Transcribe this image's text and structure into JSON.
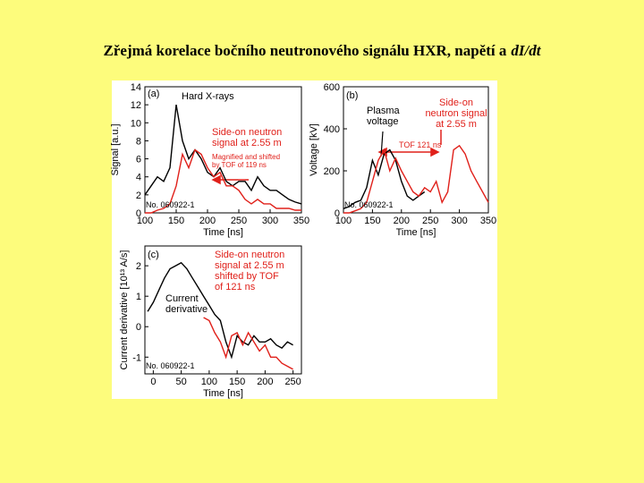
{
  "slide_title": "Zřejmá korelace bočního neutronového signálu HXR, napětí a",
  "slide_title_emphasis": "dI/dt",
  "chart_data": [
    {
      "type": "line",
      "xlabel": "Time [ns]",
      "ylabel": "Signal [a.u.]",
      "x": [
        100,
        110,
        120,
        130,
        140,
        150,
        160,
        170,
        180,
        190,
        200,
        210,
        220,
        230,
        240,
        250,
        260,
        270,
        280,
        290,
        300,
        310,
        320,
        330,
        340,
        350
      ],
      "series": [
        {
          "color": "#000000",
          "values": [
            2,
            3,
            4,
            3.5,
            5,
            12,
            8,
            6,
            7,
            6,
            4.5,
            4,
            5,
            3.5,
            3,
            3.5,
            3.5,
            2.5,
            4,
            3,
            2.5,
            2.5,
            2,
            1.5,
            1.2,
            1
          ]
        },
        {
          "color": "#e0201a",
          "values": [
            0,
            0,
            0.3,
            0.5,
            1,
            3,
            6.5,
            5,
            7,
            6.5,
            5,
            4,
            4.5,
            3,
            3,
            2.5,
            1.5,
            1,
            1.5,
            1,
            1,
            0.5,
            0.5,
            0.5,
            0.3,
            0.3
          ]
        }
      ],
      "xlim": [
        100,
        350
      ],
      "xticks": [
        100,
        150,
        200,
        250,
        300,
        350
      ],
      "ylim": [
        0,
        14
      ],
      "yticks": [
        0,
        2,
        4,
        6,
        8,
        10,
        12,
        14
      ],
      "annotations": [
        {
          "lines": [
            "(a)"
          ],
          "color": "#000000"
        },
        {
          "lines": [
            "Hard X-rays"
          ],
          "color": "#000000"
        },
        {
          "lines": [
            "Side-on neutron",
            "signal at 2.55 m"
          ],
          "color": "#e0201a"
        },
        {
          "lines": [
            "Magnified and shifted",
            "by TOF of 119 ns"
          ],
          "color": "#e0201a"
        },
        {
          "lines": [
            "No. 060922-1"
          ],
          "color": "#000000"
        }
      ]
    },
    {
      "type": "line",
      "xlabel": "Time [ns]",
      "ylabel": "Voltage [kV]",
      "x": [
        100,
        110,
        120,
        130,
        140,
        150,
        160,
        170,
        180,
        190,
        200,
        210,
        220,
        230,
        240,
        250,
        260,
        270,
        280,
        290,
        300,
        310,
        320,
        330,
        340,
        350
      ],
      "series": [
        {
          "color": "#000000",
          "values": [
            20,
            30,
            50,
            60,
            120,
            250,
            180,
            280,
            300,
            250,
            150,
            80,
            60,
            80,
            100,
            null,
            null,
            null,
            null,
            null,
            null,
            null,
            null,
            null,
            null,
            null
          ]
        },
        {
          "color": "#e0201a",
          "values": [
            0,
            0,
            10,
            20,
            50,
            150,
            250,
            300,
            200,
            260,
            200,
            150,
            100,
            80,
            120,
            100,
            150,
            50,
            100,
            300,
            320,
            280,
            200,
            150,
            100,
            50
          ]
        }
      ],
      "xlim": [
        100,
        350
      ],
      "xticks": [
        100,
        150,
        200,
        250,
        300,
        350
      ],
      "ylim": [
        0,
        600
      ],
      "yticks": [
        0,
        200,
        400,
        600
      ],
      "annotations": [
        {
          "lines": [
            "(b)"
          ],
          "color": "#000000"
        },
        {
          "lines": [
            "Plasma",
            "voltage"
          ],
          "color": "#000000"
        },
        {
          "lines": [
            "Side-on",
            "neutron signal",
            "at 2.55 m"
          ],
          "color": "#e0201a"
        },
        {
          "lines": [
            "TOF 121 ns"
          ],
          "color": "#e0201a"
        },
        {
          "lines": [
            "No. 060922-1"
          ],
          "color": "#000000"
        }
      ]
    },
    {
      "type": "line",
      "xlabel": "Time [ns]",
      "ylabel": "Current derivative [10¹³ A/s]",
      "x": [
        -10,
        0,
        10,
        20,
        30,
        40,
        50,
        60,
        70,
        80,
        90,
        100,
        110,
        120,
        130,
        140,
        150,
        160,
        170,
        180,
        190,
        200,
        210,
        220,
        230,
        240,
        250
      ],
      "series": [
        {
          "color": "#000000",
          "values": [
            0.5,
            0.8,
            1.2,
            1.6,
            1.9,
            2.0,
            2.1,
            1.9,
            1.6,
            1.3,
            1.0,
            0.7,
            0.4,
            0.2,
            -0.5,
            -1.0,
            -0.3,
            -0.5,
            -0.6,
            -0.3,
            -0.5,
            -0.5,
            -0.4,
            -0.6,
            -0.7,
            -0.5,
            -0.6
          ]
        },
        {
          "color": "#e0201a",
          "values": [
            null,
            null,
            null,
            null,
            null,
            null,
            null,
            null,
            null,
            null,
            0.3,
            0.2,
            -0.2,
            -0.5,
            -1.0,
            -0.3,
            -0.2,
            -0.6,
            -0.2,
            -0.5,
            -0.8,
            -0.6,
            -1.0,
            -1.0,
            -1.2,
            -1.3,
            -1.4
          ]
        }
      ],
      "xlim": [
        -15,
        265
      ],
      "xticks": [
        0,
        50,
        100,
        150,
        200,
        250
      ],
      "ylim": [
        -1.55,
        2.65
      ],
      "yticks": [
        -1,
        0,
        1,
        2
      ],
      "annotations": [
        {
          "lines": [
            "(c)"
          ],
          "color": "#000000"
        },
        {
          "lines": [
            "Side-on neutron",
            "signal at 2.55 m",
            "shifted by TOF",
            "of 121 ns"
          ],
          "color": "#e0201a"
        },
        {
          "lines": [
            "Current",
            "derivative"
          ],
          "color": "#000000"
        },
        {
          "lines": [
            "No. 060922-1"
          ],
          "color": "#000000"
        }
      ]
    }
  ]
}
